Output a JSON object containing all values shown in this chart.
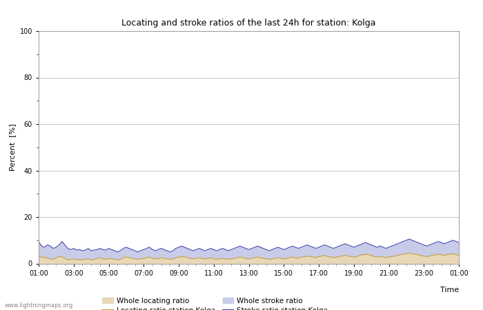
{
  "title": "Locating and stroke ratios of the last 24h for station: Kolga",
  "ylabel": "Percent  [%]",
  "xlim": [
    0,
    48
  ],
  "ylim": [
    0,
    100
  ],
  "yticks": [
    0,
    20,
    40,
    60,
    80,
    100
  ],
  "ytick_minor": [
    10,
    30,
    50,
    70,
    90
  ],
  "xtick_labels": [
    "01:00",
    "03:00",
    "05:00",
    "07:00",
    "09:00",
    "11:00",
    "13:00",
    "15:00",
    "17:00",
    "19:00",
    "21:00",
    "23:00",
    "01:00"
  ],
  "background_color": "#ffffff",
  "plot_bg_color": "#ffffff",
  "grid_color": "#c8c8c8",
  "watermark": "www.lightningmaps.org",
  "whole_locating_color": "#e8d8b8",
  "whole_stroke_color": "#c8cce8",
  "locating_line_color": "#c8a040",
  "stroke_line_color": "#4848b0",
  "n_points": 145,
  "whole_locating_data": [
    3.5,
    2.5,
    2.8,
    2.2,
    2.0,
    1.8,
    2.5,
    3.0,
    2.8,
    2.2,
    1.5,
    1.8,
    2.0,
    1.5,
    1.8,
    1.5,
    1.8,
    2.0,
    1.5,
    1.8,
    2.2,
    2.5,
    2.0,
    1.8,
    2.2,
    2.0,
    1.8,
    1.5,
    1.8,
    2.5,
    2.8,
    2.5,
    2.2,
    2.0,
    1.8,
    2.0,
    2.2,
    2.5,
    2.8,
    2.2,
    2.0,
    2.2,
    2.5,
    2.2,
    2.0,
    1.8,
    2.0,
    2.5,
    2.8,
    3.0,
    2.8,
    2.5,
    2.2,
    2.0,
    2.2,
    2.5,
    2.2,
    2.0,
    2.2,
    2.5,
    2.0,
    1.8,
    2.0,
    2.2,
    2.0,
    1.8,
    2.0,
    2.2,
    2.5,
    2.8,
    2.5,
    2.2,
    2.0,
    2.2,
    2.5,
    2.8,
    2.5,
    2.2,
    2.0,
    1.8,
    2.0,
    2.2,
    2.5,
    2.2,
    2.0,
    2.2,
    2.5,
    2.8,
    2.5,
    2.2,
    2.8,
    3.0,
    3.2,
    3.0,
    2.8,
    2.5,
    3.0,
    3.2,
    3.5,
    3.0,
    2.8,
    2.5,
    2.8,
    3.0,
    3.2,
    3.5,
    3.2,
    3.0,
    2.8,
    3.0,
    3.5,
    3.8,
    4.0,
    3.8,
    3.5,
    3.0,
    2.8,
    3.0,
    2.8,
    2.5,
    2.8,
    3.0,
    3.2,
    3.5,
    3.8,
    4.0,
    4.2,
    4.5,
    4.2,
    4.0,
    3.8,
    3.5,
    3.2,
    3.0,
    3.2,
    3.5,
    3.8,
    4.0,
    3.8,
    3.5,
    3.8,
    4.0,
    4.2,
    3.8,
    3.5
  ],
  "whole_stroke_data": [
    9.5,
    7.5,
    7.0,
    8.0,
    7.5,
    6.5,
    7.0,
    8.0,
    9.5,
    8.0,
    6.5,
    6.0,
    6.5,
    5.8,
    6.0,
    5.5,
    5.8,
    6.5,
    5.5,
    5.8,
    6.0,
    6.5,
    6.0,
    5.8,
    6.5,
    6.0,
    5.5,
    5.0,
    5.5,
    6.5,
    7.0,
    6.5,
    6.0,
    5.5,
    5.0,
    5.5,
    6.0,
    6.5,
    7.0,
    6.0,
    5.5,
    6.0,
    6.5,
    6.0,
    5.5,
    5.0,
    5.5,
    6.5,
    7.0,
    7.5,
    7.0,
    6.5,
    6.0,
    5.5,
    6.0,
    6.5,
    6.0,
    5.5,
    6.0,
    6.5,
    6.0,
    5.5,
    6.0,
    6.5,
    6.0,
    5.5,
    6.0,
    6.5,
    7.0,
    7.5,
    7.0,
    6.5,
    6.0,
    6.5,
    7.0,
    7.5,
    7.0,
    6.5,
    6.0,
    5.5,
    6.0,
    6.5,
    7.0,
    6.5,
    6.0,
    6.5,
    7.0,
    7.5,
    7.0,
    6.5,
    7.0,
    7.5,
    8.0,
    7.5,
    7.0,
    6.5,
    7.0,
    7.5,
    8.0,
    7.5,
    7.0,
    6.5,
    7.0,
    7.5,
    8.0,
    8.5,
    8.0,
    7.5,
    7.0,
    7.5,
    8.0,
    8.5,
    9.0,
    8.5,
    8.0,
    7.5,
    7.0,
    7.5,
    7.0,
    6.5,
    7.0,
    7.5,
    8.0,
    8.5,
    9.0,
    9.5,
    10.0,
    10.5,
    10.0,
    9.5,
    9.0,
    8.5,
    8.0,
    7.5,
    8.0,
    8.5,
    9.0,
    9.5,
    9.0,
    8.5,
    9.0,
    9.5,
    10.0,
    9.5,
    9.0
  ],
  "locating_line_data": [
    3.5,
    2.5,
    2.8,
    2.2,
    2.0,
    1.8,
    2.5,
    3.0,
    2.8,
    2.2,
    1.5,
    1.8,
    2.0,
    1.5,
    1.8,
    1.5,
    1.8,
    2.0,
    1.5,
    1.8,
    2.2,
    2.5,
    2.0,
    1.8,
    2.2,
    2.0,
    1.8,
    1.5,
    1.8,
    2.5,
    2.8,
    2.5,
    2.2,
    2.0,
    1.8,
    2.0,
    2.2,
    2.5,
    2.8,
    2.2,
    2.0,
    2.2,
    2.5,
    2.2,
    2.0,
    1.8,
    2.0,
    2.5,
    2.8,
    3.0,
    2.8,
    2.5,
    2.2,
    2.0,
    2.2,
    2.5,
    2.2,
    2.0,
    2.2,
    2.5,
    2.0,
    1.8,
    2.0,
    2.2,
    2.0,
    1.8,
    2.0,
    2.2,
    2.5,
    2.8,
    2.5,
    2.2,
    2.0,
    2.2,
    2.5,
    2.8,
    2.5,
    2.2,
    2.0,
    1.8,
    2.0,
    2.2,
    2.5,
    2.2,
    2.0,
    2.2,
    2.5,
    2.8,
    2.5,
    2.2,
    2.8,
    3.0,
    3.2,
    3.0,
    2.8,
    2.5,
    3.0,
    3.2,
    3.5,
    3.0,
    2.8,
    2.5,
    2.8,
    3.0,
    3.2,
    3.5,
    3.2,
    3.0,
    2.8,
    3.0,
    3.5,
    3.8,
    4.0,
    3.8,
    3.5,
    3.0,
    2.8,
    3.0,
    2.8,
    2.5,
    2.8,
    3.0,
    3.2,
    3.5,
    3.8,
    4.0,
    4.2,
    4.5,
    4.2,
    4.0,
    3.8,
    3.5,
    3.2,
    3.0,
    3.2,
    3.5,
    3.8,
    4.0,
    3.8,
    3.5,
    3.8,
    4.0,
    4.2,
    3.8,
    3.5
  ],
  "stroke_line_data": [
    9.5,
    7.5,
    7.0,
    8.0,
    7.5,
    6.5,
    7.0,
    8.0,
    9.5,
    8.0,
    6.5,
    6.0,
    6.5,
    5.8,
    6.0,
    5.5,
    5.8,
    6.5,
    5.5,
    5.8,
    6.0,
    6.5,
    6.0,
    5.8,
    6.5,
    6.0,
    5.5,
    5.0,
    5.5,
    6.5,
    7.0,
    6.5,
    6.0,
    5.5,
    5.0,
    5.5,
    6.0,
    6.5,
    7.0,
    6.0,
    5.5,
    6.0,
    6.5,
    6.0,
    5.5,
    5.0,
    5.5,
    6.5,
    7.0,
    7.5,
    7.0,
    6.5,
    6.0,
    5.5,
    6.0,
    6.5,
    6.0,
    5.5,
    6.0,
    6.5,
    6.0,
    5.5,
    6.0,
    6.5,
    6.0,
    5.5,
    6.0,
    6.5,
    7.0,
    7.5,
    7.0,
    6.5,
    6.0,
    6.5,
    7.0,
    7.5,
    7.0,
    6.5,
    6.0,
    5.5,
    6.0,
    6.5,
    7.0,
    6.5,
    6.0,
    6.5,
    7.0,
    7.5,
    7.0,
    6.5,
    7.0,
    7.5,
    8.0,
    7.5,
    7.0,
    6.5,
    7.0,
    7.5,
    8.0,
    7.5,
    7.0,
    6.5,
    7.0,
    7.5,
    8.0,
    8.5,
    8.0,
    7.5,
    7.0,
    7.5,
    8.0,
    8.5,
    9.0,
    8.5,
    8.0,
    7.5,
    7.0,
    7.5,
    7.0,
    6.5,
    7.0,
    7.5,
    8.0,
    8.5,
    9.0,
    9.5,
    10.0,
    10.5,
    10.0,
    9.5,
    9.0,
    8.5,
    8.0,
    7.5,
    8.0,
    8.5,
    9.0,
    9.5,
    9.0,
    8.5,
    9.0,
    9.5,
    10.0,
    9.5,
    9.0
  ]
}
